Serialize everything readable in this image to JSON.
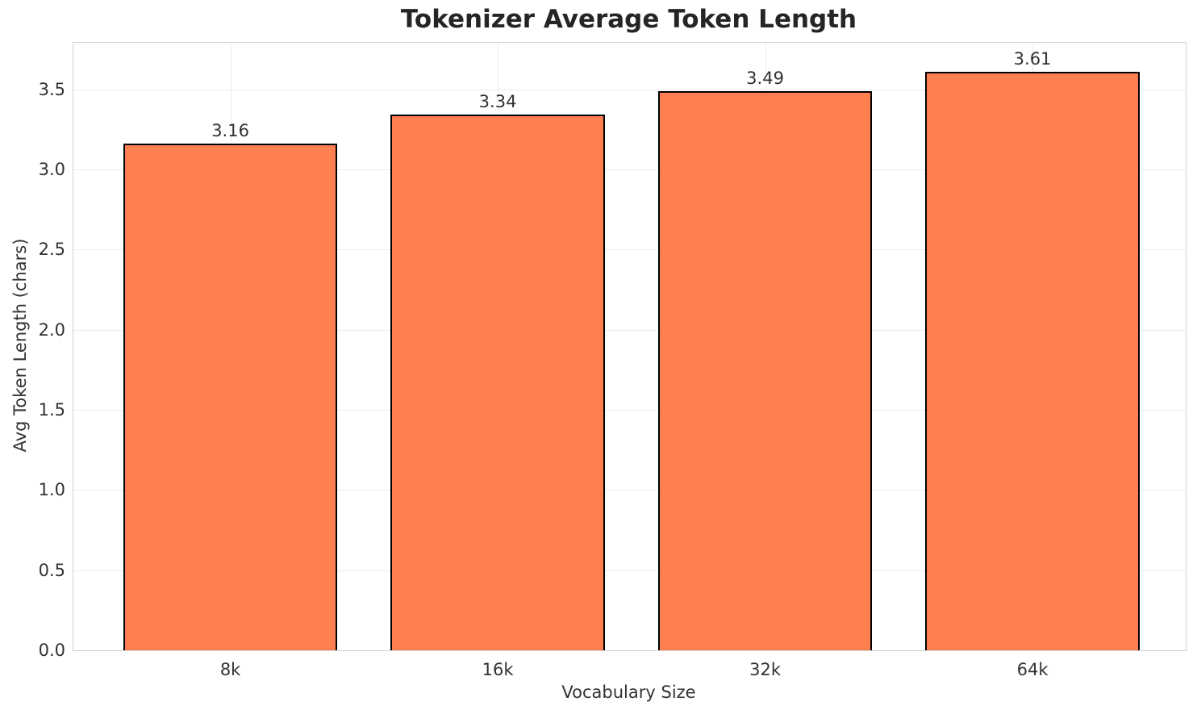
{
  "chart_data": {
    "type": "bar",
    "title": "Tokenizer Average Token Length",
    "xlabel": "Vocabulary Size",
    "ylabel": "Avg Token Length (chars)",
    "categories": [
      "8k",
      "16k",
      "32k",
      "64k"
    ],
    "values": [
      3.16,
      3.34,
      3.49,
      3.61
    ],
    "value_labels": [
      "3.16",
      "3.34",
      "3.49",
      "3.61"
    ],
    "yticks": [
      0.0,
      0.5,
      1.0,
      1.5,
      2.0,
      2.5,
      3.0,
      3.5
    ],
    "ytick_labels": [
      "0.0",
      "0.5",
      "1.0",
      "1.5",
      "2.0",
      "2.5",
      "3.0",
      "3.5"
    ],
    "ylim": [
      0,
      3.79
    ],
    "grid": true,
    "legend": "none",
    "bar_color": "#FF7F50",
    "bar_edge_color": "#000000",
    "grid_color": "#ebebeb",
    "text_color": "#333333",
    "title_color": "#252525"
  }
}
